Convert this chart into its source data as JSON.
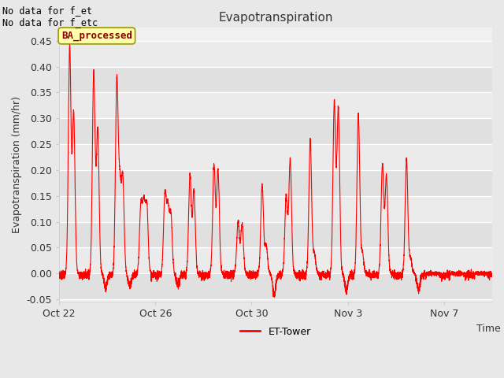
{
  "title": "Evapotranspiration",
  "ylabel": "Evapotranspiration (mm/hr)",
  "xlabel": "Time",
  "top_left_text": "No data for f_et\nNo data for f_etc",
  "watermark_text": "BA_processed",
  "legend_label": "ET-Tower",
  "line_color": "red",
  "fig_facecolor": "#e8e8e8",
  "plot_facecolor": "#f0f0f0",
  "ylim": [
    -0.055,
    0.475
  ],
  "yticks": [
    -0.05,
    0.0,
    0.05,
    0.1,
    0.15,
    0.2,
    0.25,
    0.3,
    0.35,
    0.4,
    0.45
  ],
  "num_days": 18,
  "xtick_days": [
    0,
    4,
    8,
    12,
    16
  ],
  "xtick_labels": [
    "Oct 22",
    "Oct 26",
    "Oct 30",
    "Nov 3",
    "Nov 7"
  ],
  "day_peaks": [
    [
      0.44,
      0.31
    ],
    [
      0.39,
      0.28
    ],
    [
      0.37,
      0.16,
      0.18
    ],
    [
      0.13,
      0.13,
      0.13
    ],
    [
      0.15,
      0.12,
      0.11
    ],
    [
      0.19,
      0.16
    ],
    [
      0.21,
      0.2
    ],
    [
      0.1,
      0.095
    ],
    [
      0.17,
      0.055
    ],
    [
      0.15,
      0.22
    ],
    [
      0.26,
      0.04
    ],
    [
      0.33,
      0.32
    ],
    [
      0.31,
      0.04
    ],
    [
      0.21,
      0.19
    ],
    [
      0.22,
      0.03
    ],
    [],
    [],
    []
  ],
  "night_neg_days": [
    1,
    2,
    4,
    8,
    11,
    14
  ],
  "night_neg_vals": [
    -0.025,
    -0.02,
    -0.02,
    -0.04,
    -0.03,
    -0.03
  ]
}
